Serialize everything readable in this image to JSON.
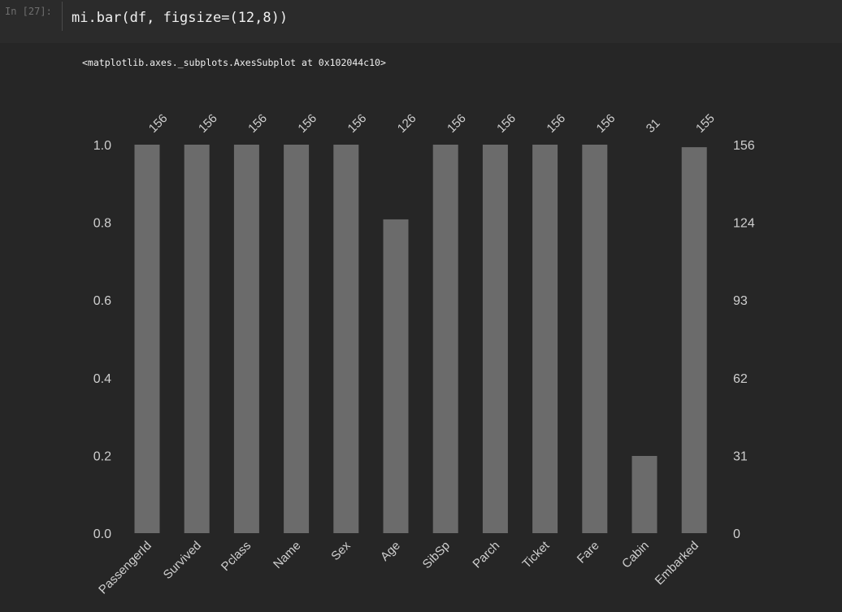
{
  "cell": {
    "prompt": "In [27]:",
    "code": "mi.bar(df, figsize=(12,8))"
  },
  "output": {
    "text": "<matplotlib.axes._subplots.AxesSubplot at 0x102044c10>"
  },
  "chart_data": {
    "type": "bar",
    "categories": [
      "PassengerId",
      "Survived",
      "Pclass",
      "Name",
      "Sex",
      "Age",
      "SibSp",
      "Parch",
      "Ticket",
      "Fare",
      "Cabin",
      "Embarked"
    ],
    "counts": [
      156,
      156,
      156,
      156,
      156,
      126,
      156,
      156,
      156,
      156,
      31,
      155
    ],
    "count_labels": [
      "156",
      "156",
      "156",
      "156",
      "156",
      "126",
      "156",
      "156",
      "156",
      "156",
      "31",
      "155"
    ],
    "total": 156,
    "left_ticks": [
      "0.0",
      "0.2",
      "0.4",
      "0.6",
      "0.8",
      "1.0"
    ],
    "left_tick_values": [
      0,
      0.2,
      0.4,
      0.6,
      0.8,
      1.0
    ],
    "right_ticks": [
      "0",
      "31",
      "62",
      "93",
      "124",
      "156"
    ],
    "ylim": [
      0,
      1.0
    ],
    "bar_color": "#6b6b6b",
    "text_color": "#cfcfcf",
    "grid": false
  }
}
